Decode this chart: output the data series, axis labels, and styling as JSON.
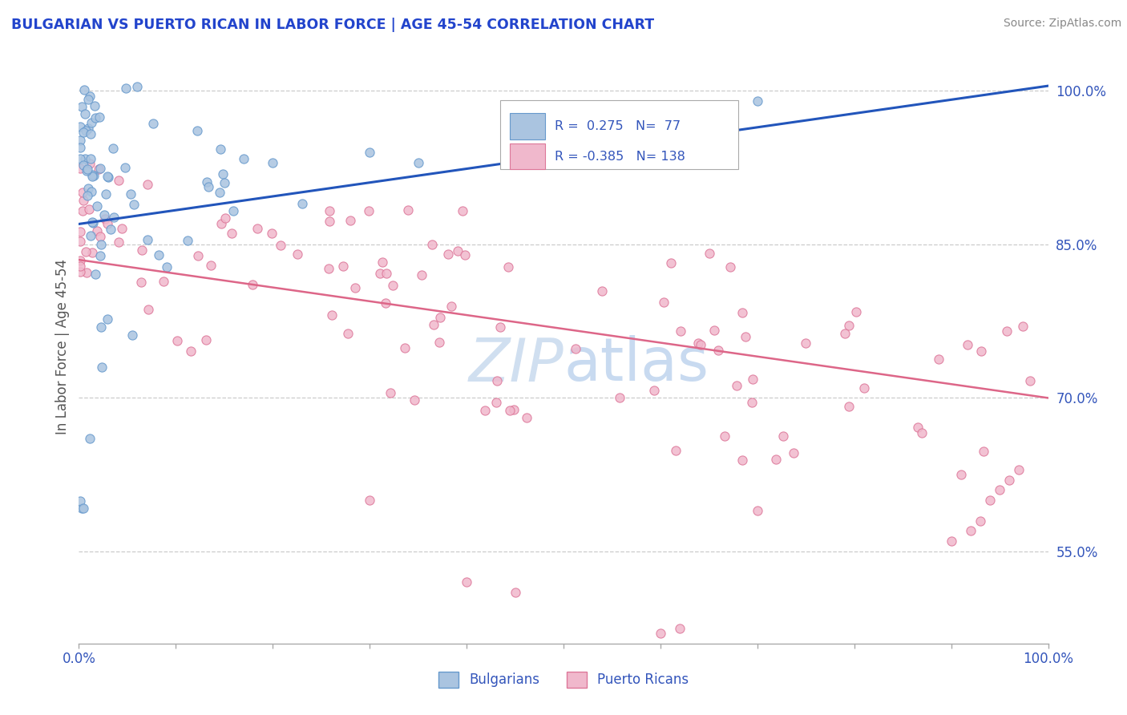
{
  "title": "BULGARIAN VS PUERTO RICAN IN LABOR FORCE | AGE 45-54 CORRELATION CHART",
  "source": "Source: ZipAtlas.com",
  "ylabel": "In Labor Force | Age 45-54",
  "xlim": [
    0.0,
    1.0
  ],
  "ylim": [
    0.46,
    1.04
  ],
  "x_tick_labels": [
    "0.0%",
    "",
    "",
    "",
    "",
    "",
    "",
    "",
    "",
    "",
    "100.0%"
  ],
  "y_tick_labels_right": [
    "55.0%",
    "70.0%",
    "85.0%",
    "100.0%"
  ],
  "y_tick_values_right": [
    0.55,
    0.7,
    0.85,
    1.0
  ],
  "R_bulgarian": 0.275,
  "N_bulgarian": 77,
  "R_puerto_rican": -0.385,
  "N_puerto_rican": 138,
  "bulgarian_color": "#6699cc",
  "bulgarian_fill": "#aac4e0",
  "puerto_rican_color": "#dd7799",
  "puerto_rican_fill": "#f0b8cc",
  "trend_bulgarian_color": "#2255bb",
  "trend_puerto_rican_color": "#dd6688",
  "trend_bulg_x0": 0.0,
  "trend_bulg_y0": 0.87,
  "trend_bulg_x1": 1.0,
  "trend_bulg_y1": 1.005,
  "trend_pr_x0": 0.0,
  "trend_pr_y0": 0.835,
  "trend_pr_x1": 1.0,
  "trend_pr_y1": 0.7,
  "watermark_color": "#d0dff0",
  "title_color": "#2244cc",
  "axis_label_color": "#555555",
  "tick_label_color": "#3355bb",
  "grid_color": "#cccccc",
  "grid_style": "--",
  "background_color": "#ffffff"
}
